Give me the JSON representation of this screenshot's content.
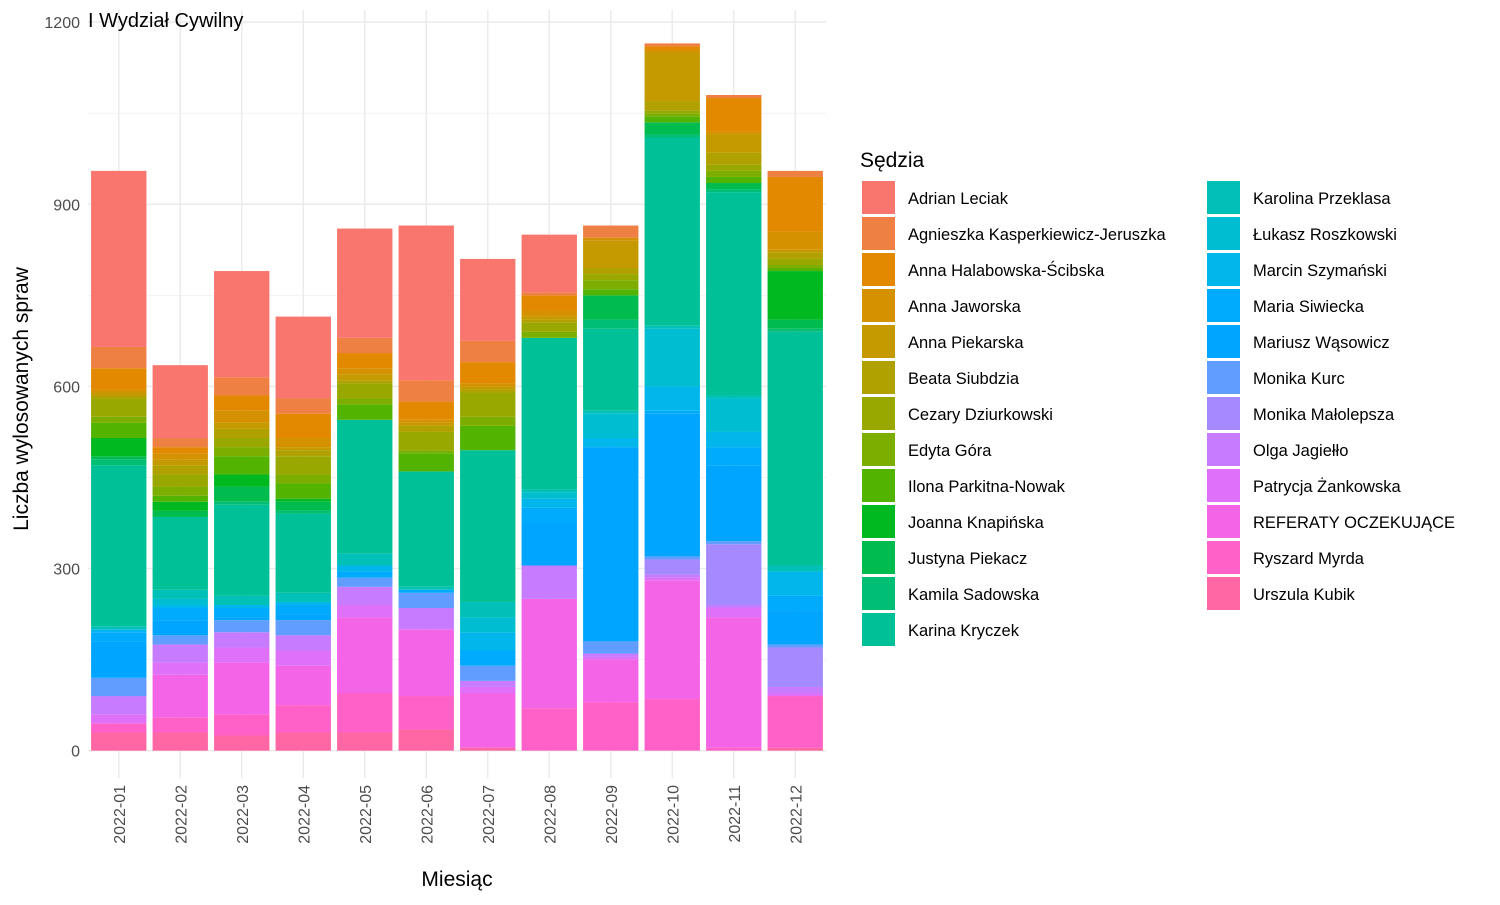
{
  "chart_data": {
    "type": "bar",
    "stacked": true,
    "title": "I Wydział Cywilny",
    "xlabel": "Miesiąc",
    "ylabel": "Liczba wylosowanych spraw",
    "ylim": [
      -45,
      1220
    ],
    "yticks": [
      0,
      300,
      600,
      900,
      1200
    ],
    "grid": true,
    "legend_title": "Sędzia",
    "legend_position": "right",
    "categories": [
      "2022-01",
      "2022-02",
      "2022-03",
      "2022-04",
      "2022-05",
      "2022-06",
      "2022-07",
      "2022-08",
      "2022-09",
      "2022-10",
      "2022-11",
      "2022-12"
    ],
    "series": [
      {
        "name": "Adrian Leciak",
        "color": "#F8766D",
        "values": [
          290,
          120,
          175,
          135,
          180,
          255,
          135,
          95,
          0,
          0,
          0,
          0
        ]
      },
      {
        "name": "Agnieszka Kasperkiewicz-Jeruszka",
        "color": "#EE8044",
        "values": [
          35,
          15,
          30,
          25,
          25,
          35,
          35,
          5,
          20,
          5,
          5,
          10
        ]
      },
      {
        "name": "Anna Halabowska-Ścibska",
        "color": "#E38900",
        "values": [
          35,
          10,
          25,
          40,
          25,
          30,
          35,
          25,
          0,
          5,
          55,
          90
        ]
      },
      {
        "name": "Anna Jaworska",
        "color": "#D59100",
        "values": [
          5,
          10,
          20,
          15,
          10,
          5,
          5,
          10,
          5,
          5,
          5,
          30
        ]
      },
      {
        "name": "Anna Piekarska",
        "color": "#C49A00",
        "values": [
          5,
          10,
          10,
          5,
          10,
          5,
          5,
          5,
          45,
          80,
          30,
          5
        ]
      },
      {
        "name": "Beata Siubdzia",
        "color": "#B0A100",
        "values": [
          5,
          15,
          15,
          10,
          5,
          10,
          5,
          5,
          10,
          15,
          20,
          10
        ]
      },
      {
        "name": "Cezary Dziurkowski",
        "color": "#99A800",
        "values": [
          30,
          20,
          15,
          30,
          25,
          30,
          40,
          15,
          10,
          5,
          10,
          10
        ]
      },
      {
        "name": "Edyta Góra",
        "color": "#7CAE00",
        "values": [
          10,
          15,
          15,
          15,
          10,
          5,
          15,
          10,
          15,
          5,
          10,
          5
        ]
      },
      {
        "name": "Ilona Parkitna-Nowak",
        "color": "#53B400",
        "values": [
          25,
          10,
          30,
          25,
          25,
          30,
          40,
          0,
          10,
          10,
          10,
          5
        ]
      },
      {
        "name": "Joanna Knapińska",
        "color": "#00B81F",
        "values": [
          30,
          15,
          20,
          5,
          0,
          0,
          0,
          0,
          0,
          0,
          0,
          80
        ]
      },
      {
        "name": "Justyna Piekacz",
        "color": "#00BB4E",
        "values": [
          5,
          10,
          25,
          15,
          0,
          0,
          0,
          0,
          40,
          20,
          10,
          15
        ]
      },
      {
        "name": "Kamila Sadowska",
        "color": "#00BF74",
        "values": [
          10,
          0,
          5,
          5,
          0,
          0,
          0,
          0,
          15,
          5,
          5,
          5
        ]
      },
      {
        "name": "Karina Kryczek",
        "color": "#00C097",
        "values": [
          265,
          120,
          150,
          130,
          220,
          190,
          250,
          250,
          135,
          310,
          335,
          385
        ]
      },
      {
        "name": "Karolina Przeklasa",
        "color": "#00C0B7",
        "values": [
          5,
          15,
          15,
          15,
          20,
          5,
          25,
          5,
          5,
          5,
          5,
          10
        ]
      },
      {
        "name": "Łukasz Roszkowski",
        "color": "#00BDD2",
        "values": [
          0,
          10,
          0,
          0,
          0,
          0,
          25,
          10,
          40,
          95,
          55,
          0
        ]
      },
      {
        "name": "Marcin Szymański",
        "color": "#00B6EB",
        "values": [
          5,
          5,
          5,
          5,
          10,
          0,
          30,
          15,
          15,
          40,
          25,
          40
        ]
      },
      {
        "name": "Maria Siwiecka",
        "color": "#00ABFD",
        "values": [
          15,
          20,
          15,
          15,
          10,
          5,
          25,
          25,
          0,
          5,
          30,
          25
        ]
      },
      {
        "name": "Mariusz Wąsowicz",
        "color": "#00A5FF",
        "values": [
          60,
          25,
          5,
          10,
          0,
          0,
          0,
          70,
          320,
          235,
          125,
          55
        ]
      },
      {
        "name": "Monika Kurc",
        "color": "#619CFF",
        "values": [
          30,
          15,
          20,
          25,
          15,
          25,
          25,
          0,
          20,
          5,
          5,
          5
        ]
      },
      {
        "name": "Monika Małolepsza",
        "color": "#A58AFF",
        "values": [
          0,
          0,
          0,
          0,
          0,
          0,
          0,
          0,
          0,
          25,
          100,
          65
        ]
      },
      {
        "name": "Olga Jagiełło",
        "color": "#C77CFF",
        "values": [
          30,
          30,
          25,
          25,
          30,
          35,
          10,
          55,
          5,
          5,
          5,
          10
        ]
      },
      {
        "name": "Patrycja Żankowska",
        "color": "#DF70F8",
        "values": [
          15,
          20,
          25,
          25,
          20,
          0,
          10,
          0,
          5,
          5,
          15,
          5
        ]
      },
      {
        "name": "REFERATY OCZEKUJĄCE",
        "color": "#F365E6",
        "values": [
          0,
          70,
          85,
          65,
          125,
          110,
          90,
          180,
          70,
          195,
          215,
          0
        ]
      },
      {
        "name": "Ryszard Myrda",
        "color": "#FF61C9",
        "values": [
          15,
          25,
          35,
          45,
          65,
          55,
          0,
          70,
          80,
          85,
          5,
          85
        ]
      },
      {
        "name": "Urszula Kubik",
        "color": "#FF67A4",
        "values": [
          30,
          30,
          25,
          30,
          30,
          35,
          5,
          0,
          0,
          0,
          0,
          5
        ]
      }
    ]
  }
}
